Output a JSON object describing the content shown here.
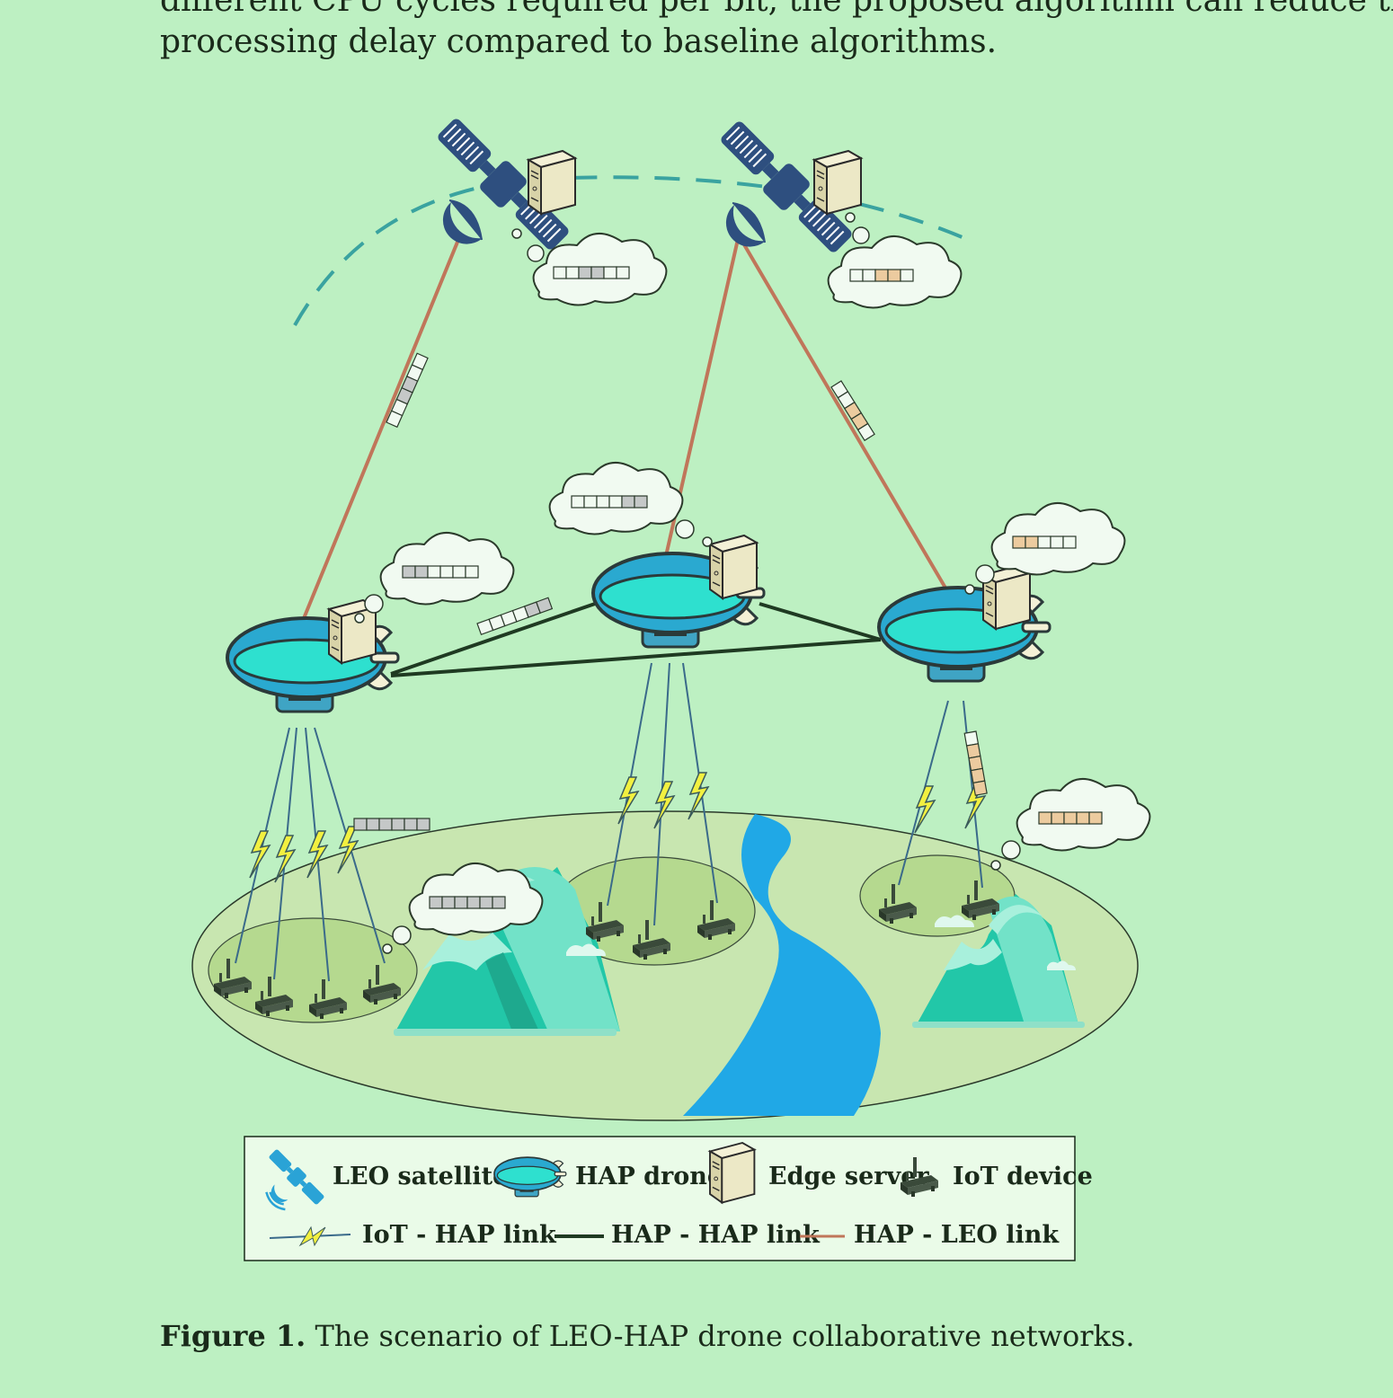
{
  "intro": {
    "line1": "different CPU cycles required per bit, the proposed algorithm can reduce the to",
    "line2": "processing delay compared to baseline algorithms."
  },
  "legend": {
    "leo_satellite": "LEO satellite",
    "hap_drone": "HAP drone",
    "edge_server": "Edge server",
    "iot_device": "IoT device",
    "iot_hap_link": "IoT - HAP link",
    "hap_hap_link": "HAP - HAP link",
    "hap_leo_link": "HAP - LEO link"
  },
  "caption": {
    "label": "Figure 1.",
    "text": " The scenario of LEO-HAP drone collaborative networks."
  },
  "colors": {
    "background": "#bdf0c2",
    "satellite": "#2e4f7f",
    "drone_body": "#2ee0cf",
    "drone_band": "#2aa9d0",
    "hap_leo_link": "#c0765a",
    "hap_hap_link": "#1f3a22",
    "iot_link_bolt": "#f2f040",
    "river": "#20a8e6",
    "mountain": "#22c7a8",
    "ground": "#c8e6b0"
  },
  "icons": [
    "satellite-icon",
    "hap-drone-icon",
    "edge-server-icon",
    "iot-device-icon",
    "lightning-icon",
    "cloud-icon",
    "task-queue-icon",
    "mountain-icon",
    "river-icon"
  ]
}
